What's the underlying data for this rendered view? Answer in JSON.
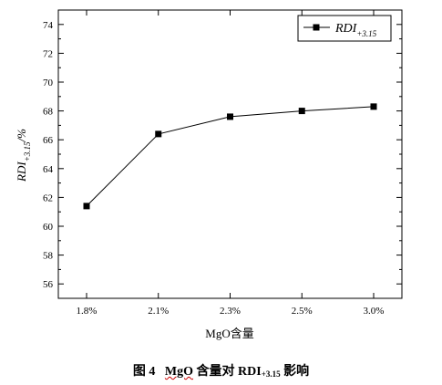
{
  "chart_data": {
    "type": "line",
    "categories": [
      "1.8%",
      "2.1%",
      "2.3%",
      "2.5%",
      "3.0%"
    ],
    "series": [
      {
        "name": "RDI+3.15",
        "values": [
          61.4,
          66.4,
          67.6,
          68.0,
          68.3
        ]
      }
    ],
    "ylim": [
      55,
      75
    ],
    "yticks": [
      56,
      58,
      60,
      62,
      64,
      66,
      68,
      70,
      72,
      74
    ],
    "xlabel": "MgO含量",
    "ylabel": "RDI+3.15/%",
    "legend_position": "top-right",
    "marker": "square",
    "line_color": "#000000",
    "grid": false
  },
  "legend": {
    "main": "RDI",
    "sub": "+3.15"
  },
  "ylabel": {
    "main": "RDI",
    "sub": "+3.15",
    "suffix": "/%"
  },
  "xlabel": "MgO含量",
  "caption": {
    "figure": "图 4",
    "lead": "MgO",
    "mid": " 含量对 RDI",
    "sub": "+3.15",
    "tail": " 影响"
  }
}
